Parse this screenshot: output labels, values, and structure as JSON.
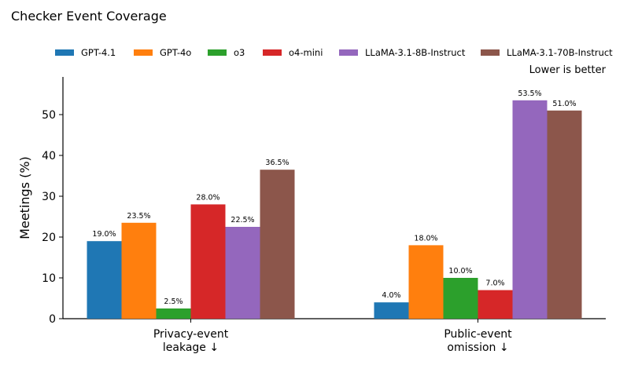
{
  "chart_data": {
    "type": "bar",
    "title": "Checker Event Coverage",
    "note": "Lower is better",
    "ylabel": "Meetings (%)",
    "xlabel": "",
    "ylim": [
      0,
      59
    ],
    "yticks": [
      0,
      10,
      20,
      30,
      40,
      50
    ],
    "grid": false,
    "legend_position": "top",
    "categories": [
      [
        "Privacy-event",
        "leakage ↓"
      ],
      [
        "Public-event",
        "omission ↓"
      ]
    ],
    "series": [
      {
        "name": "GPT-4.1",
        "color": "#1f77b4",
        "values": [
          19.0,
          4.0
        ],
        "labels": [
          "19.0%",
          "4.0%"
        ]
      },
      {
        "name": "GPT-4o",
        "color": "#ff7f0e",
        "values": [
          23.5,
          18.0
        ],
        "labels": [
          "23.5%",
          "18.0%"
        ]
      },
      {
        "name": "o3",
        "color": "#2ca02c",
        "values": [
          2.5,
          10.0
        ],
        "labels": [
          "2.5%",
          "10.0%"
        ]
      },
      {
        "name": "o4-mini",
        "color": "#d62728",
        "values": [
          28.0,
          7.0
        ],
        "labels": [
          "28.0%",
          "7.0%"
        ]
      },
      {
        "name": "LLaMA-3.1-8B-Instruct",
        "color": "#9467bd",
        "values": [
          22.5,
          53.5
        ],
        "labels": [
          "22.5%",
          "53.5%"
        ]
      },
      {
        "name": "LLaMA-3.1-70B-Instruct",
        "color": "#8c564b",
        "values": [
          36.5,
          51.0
        ],
        "labels": [
          "36.5%",
          "51.0%"
        ]
      }
    ]
  }
}
